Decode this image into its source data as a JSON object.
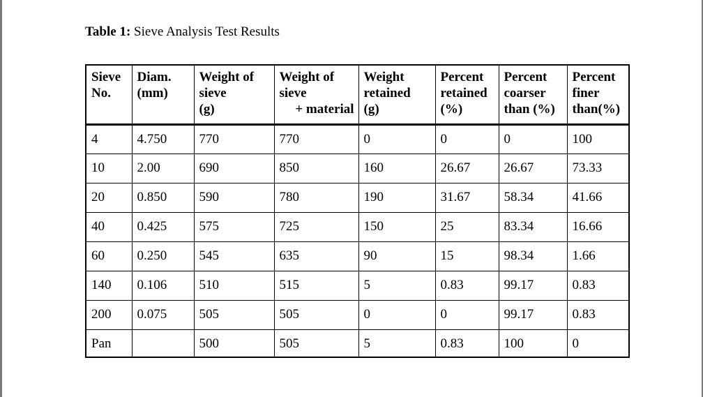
{
  "caption": {
    "label": "Table 1:",
    "text": " Sieve Analysis Test Results"
  },
  "table": {
    "headers": [
      [
        "Sieve",
        "No."
      ],
      [
        "Diam.",
        "(mm)"
      ],
      [
        "Weight of",
        "sieve",
        "(g)"
      ],
      [
        "Weight of",
        "sieve",
        "+ material"
      ],
      [
        "Weight",
        "retained",
        "(g)"
      ],
      [
        "Percent",
        "retained",
        "(%)"
      ],
      [
        "Percent",
        "coarser",
        "than (%)"
      ],
      [
        "Percent",
        "finer",
        "than(%)"
      ]
    ],
    "rows": [
      [
        "4",
        "4.750",
        "770",
        "770",
        "0",
        "0",
        "0",
        "100"
      ],
      [
        "10",
        "2.00",
        "690",
        "850",
        "160",
        "26.67",
        "26.67",
        "73.33"
      ],
      [
        "20",
        "0.850",
        "590",
        "780",
        "190",
        "31.67",
        "58.34",
        "41.66"
      ],
      [
        "40",
        "0.425",
        "575",
        "725",
        "150",
        "25",
        "83.34",
        "16.66"
      ],
      [
        "60",
        "0.250",
        "545",
        "635",
        "90",
        "15",
        "98.34",
        "1.66"
      ],
      [
        "140",
        "0.106",
        "510",
        "515",
        "5",
        "0.83",
        "99.17",
        "0.83"
      ],
      [
        "200",
        "0.075",
        "505",
        "505",
        "0",
        "0",
        "99.17",
        "0.83"
      ],
      [
        "Pan",
        "",
        "500",
        "505",
        "5",
        "0.83",
        "100",
        "0"
      ]
    ]
  }
}
